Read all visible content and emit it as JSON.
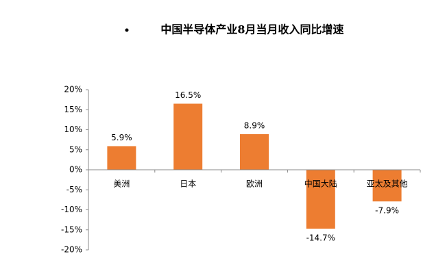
{
  "chart_data": {
    "type": "bar",
    "title": "中国半导体产业8月当月收入同比增速",
    "categories": [
      "美洲",
      "日本",
      "欧洲",
      "中国大陆",
      "亚太及其他"
    ],
    "values": [
      5.9,
      16.5,
      8.9,
      -14.7,
      -7.9
    ],
    "value_labels": [
      "5.9%",
      "16.5%",
      "8.9%",
      "-14.7%",
      "-7.9%"
    ],
    "color": "#ed7d31",
    "ylim": [
      -20,
      20
    ],
    "yticks": [
      {
        "value": -20,
        "label": "-20%"
      },
      {
        "value": -15,
        "label": "-15%"
      },
      {
        "value": -10,
        "label": "-10%"
      },
      {
        "value": -5,
        "label": "-5%"
      },
      {
        "value": 0,
        "label": "0%"
      },
      {
        "value": 5,
        "label": "5%"
      },
      {
        "value": 10,
        "label": "10%"
      },
      {
        "value": 15,
        "label": "15%"
      },
      {
        "value": 20,
        "label": "20%"
      }
    ],
    "grid": false
  }
}
